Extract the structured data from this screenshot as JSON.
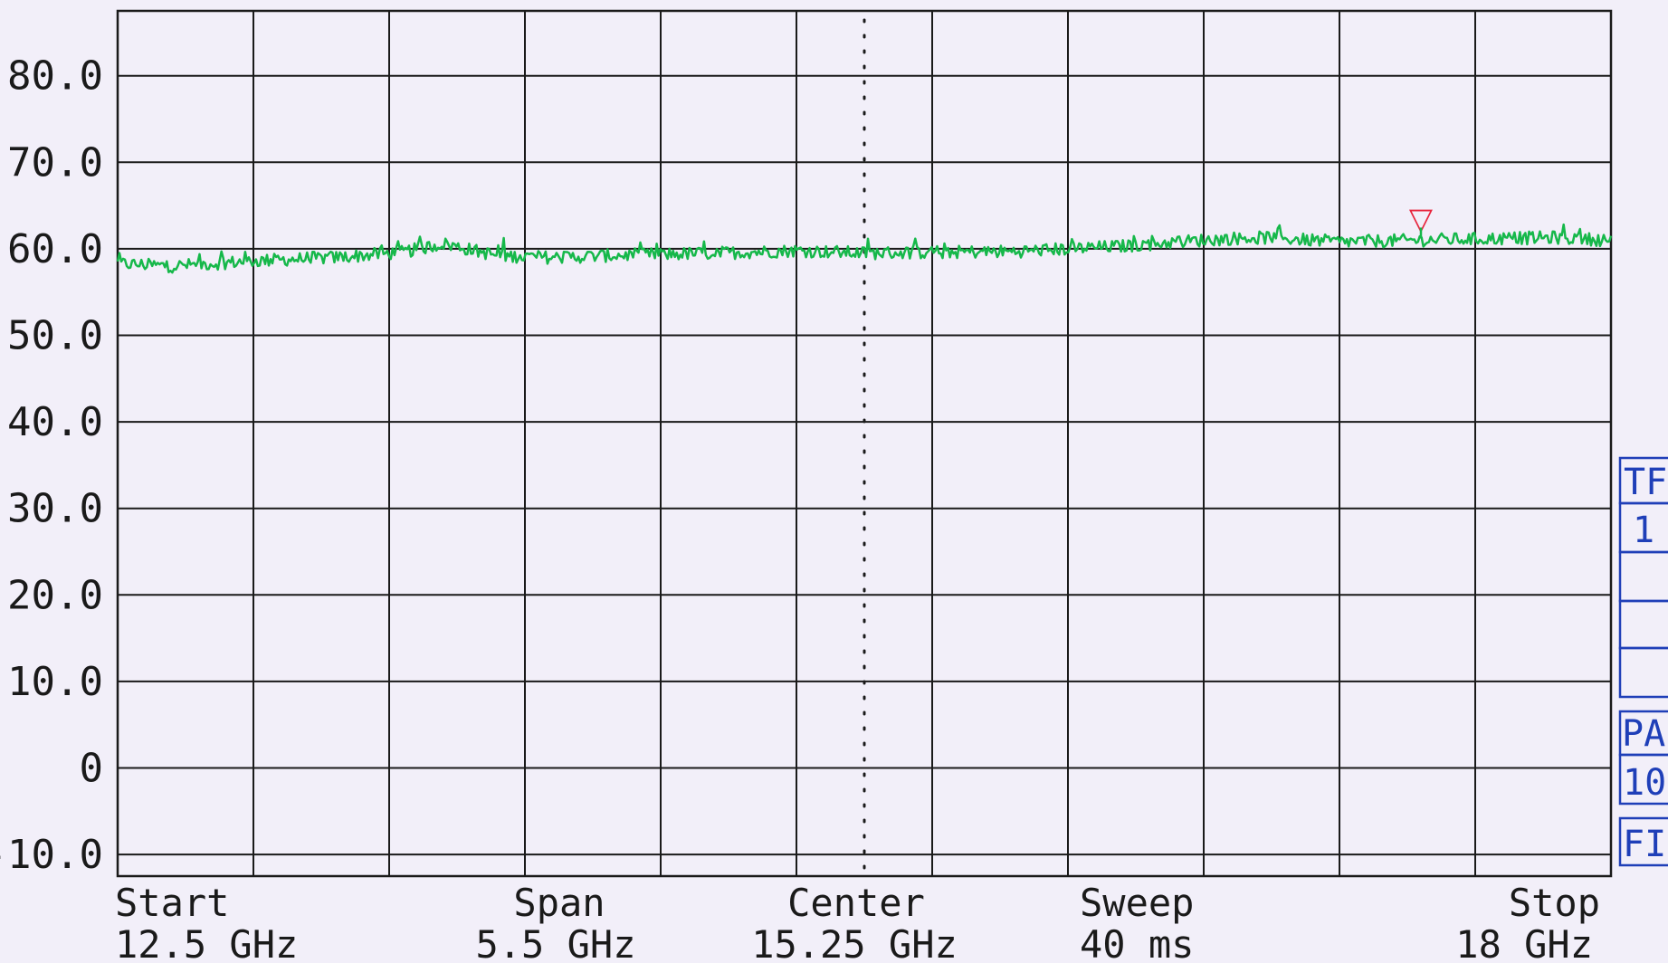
{
  "chart_data": {
    "type": "line",
    "title": "",
    "xlabel": "",
    "ylabel": "",
    "xlim": [
      12.5,
      18
    ],
    "ylim": [
      -12.5,
      87.5
    ],
    "y_ticks": [
      "80.0",
      "70.0",
      "60.0",
      "50.0",
      "40.0",
      "30.0",
      "20.0",
      "10.0",
      "0",
      "-10.0"
    ],
    "y_tick_values": [
      80,
      70,
      60,
      50,
      40,
      30,
      20,
      10,
      0,
      -10
    ],
    "x_grid_divisions": 11,
    "reference_level": 60,
    "grid": true,
    "center_marker": "dotted",
    "trace_color": "#16b84a",
    "series": [
      {
        "x": [
          12.5,
          12.7,
          13.0,
          13.3,
          13.55,
          13.7,
          13.9,
          14.1,
          14.4,
          14.7,
          15.0,
          15.25,
          15.5,
          15.8,
          16.0,
          16.2,
          16.4,
          16.6,
          16.75,
          17.0,
          17.3,
          17.6,
          17.8,
          18.0
        ],
        "values": [
          58.3,
          58.0,
          58.6,
          59.0,
          59.6,
          60.6,
          59.2,
          59.0,
          59.3,
          59.5,
          59.8,
          59.5,
          59.6,
          59.7,
          60.0,
          60.3,
          60.8,
          61.2,
          61.3,
          60.8,
          61.0,
          61.2,
          61.3,
          61.0
        ]
      }
    ],
    "marker": {
      "symbol": "▽",
      "x": 17.3,
      "y": 63.5,
      "color": "#e8243c"
    },
    "info": {
      "start_label": "Start",
      "start_value": "12.5 GHz",
      "span_label": "Span",
      "span_value": "5.5 GHz",
      "center_label": "Center",
      "center_value": "15.25 GHz",
      "sweep_label": "Sweep",
      "sweep_value": "40 ms",
      "stop_label": "Stop",
      "stop_value": "18 GHz"
    },
    "side_panel": {
      "color": "#1f3fb8",
      "tf_label": "TF",
      "tf_value": "1",
      "pa_label": "PA",
      "pa_value": "10",
      "fi_label": "FI"
    }
  }
}
